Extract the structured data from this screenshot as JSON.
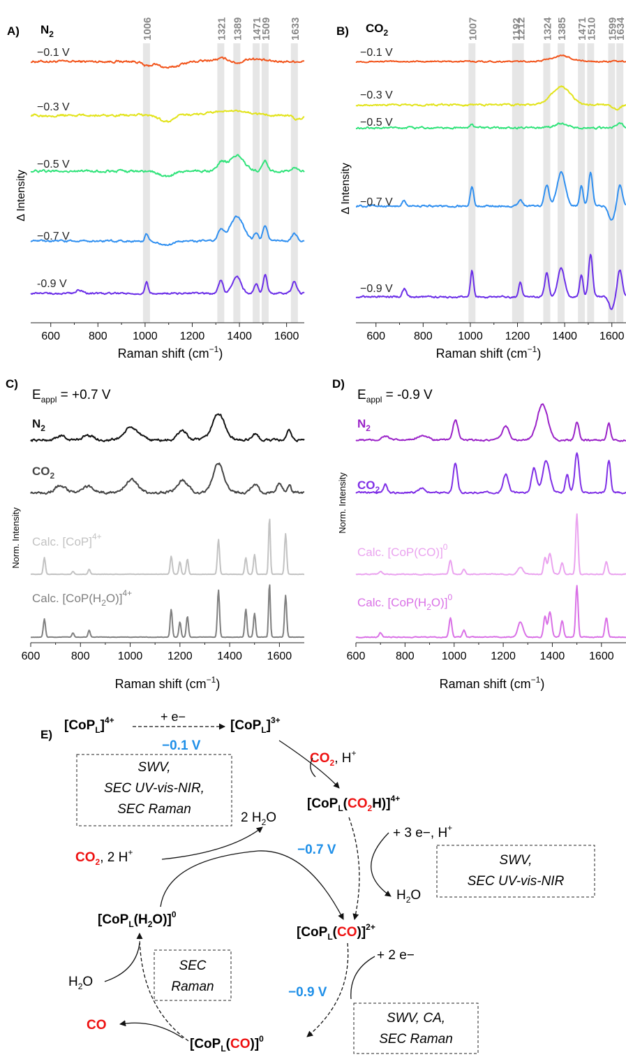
{
  "panels": {
    "A": {
      "letter": "A)",
      "gas": "N",
      "gas_sub": "2",
      "ylabel": "Δ Intensity",
      "xlabel_main": "Raman shift (cm",
      "xlabel_sup": "−1",
      "xlabel_end": ")",
      "ticks": [
        "600",
        "800",
        "1000",
        "1200",
        "1400",
        "1600"
      ],
      "peaks": [
        "1006",
        "1321",
        "1389",
        "1471",
        "1509",
        "1633"
      ],
      "traces": [
        {
          "label": "−0.1 V",
          "color": "#f2541b"
        },
        {
          "label": "−0.3 V",
          "color": "#e2e31a"
        },
        {
          "label": "−0.5 V",
          "color": "#30e37a"
        },
        {
          "label": "−0.7 V",
          "color": "#2f8ff0"
        },
        {
          "label": "-0.9 V",
          "color": "#6b2ee8"
        }
      ]
    },
    "B": {
      "letter": "B)",
      "gas": "CO",
      "gas_sub": "2",
      "ylabel": "Δ Intensity",
      "xlabel_main": "Raman shift (cm",
      "xlabel_sup": "−1",
      "xlabel_end": ")",
      "ticks": [
        "600",
        "800",
        "1000",
        "1200",
        "1400",
        "1600"
      ],
      "peaks": [
        "1007",
        "1192",
        "1212",
        "1324",
        "1385",
        "1471",
        "1510",
        "1599",
        "1634"
      ],
      "traces": [
        {
          "label": "−0.1 V",
          "color": "#f2541b"
        },
        {
          "label": "−0.3 V",
          "color": "#e2e31a"
        },
        {
          "label": "−0.5 V",
          "color": "#30e37a"
        },
        {
          "label": "−0.7 V",
          "color": "#2f8ff0"
        },
        {
          "label": "−0.9 V",
          "color": "#6b2ee8"
        }
      ]
    },
    "C": {
      "letter": "C)",
      "eappl": "E",
      "eappl_sub": "appl",
      "eappl_val": " = +0.7 V",
      "ylabel": "Norm. Intensity",
      "xlabel_main": "Raman shift (cm",
      "xlabel_sup": "−1",
      "xlabel_end": ")",
      "ticks": [
        "600",
        "800",
        "1000",
        "1200",
        "1400",
        "1600"
      ],
      "traces": [
        {
          "label": "N",
          "sub": "2",
          "sup": "",
          "color": "#111111"
        },
        {
          "label": "CO",
          "sub": "2",
          "sup": "",
          "color": "#444444"
        },
        {
          "label": "Calc. [CoP]",
          "sub": "",
          "sup": "4+",
          "color": "#c2c2c2"
        },
        {
          "label": "Calc. [CoP(H",
          "sub": "2",
          "label2": "O)]",
          "sup": "4+",
          "color": "#7f7f7f"
        }
      ]
    },
    "D": {
      "letter": "D)",
      "eappl": "E",
      "eappl_sub": "appl",
      "eappl_val": " = -0.9 V",
      "ylabel": "Norm. Intensity",
      "xlabel_main": "Raman shift (cm",
      "xlabel_sup": "−1",
      "xlabel_end": ")",
      "ticks": [
        "600",
        "800",
        "1000",
        "1200",
        "1400",
        "1600"
      ],
      "traces": [
        {
          "label": "N",
          "sub": "2",
          "sup": "",
          "color": "#9a22c8"
        },
        {
          "label": "CO",
          "sub": "2",
          "sup": "",
          "color": "#7f2fe6"
        },
        {
          "label": "Calc. [CoP(CO)]",
          "sub": "",
          "sup": "0",
          "color": "#eaa3ef"
        },
        {
          "label": "Calc. [CoP(H",
          "sub": "2",
          "label2": "O)]",
          "sup": "0",
          "color": "#d970e6"
        }
      ]
    }
  },
  "scheme": {
    "letter": "E)",
    "species": {
      "cop4": {
        "a": "[CoP",
        "sub": "L",
        "b": "]",
        "sup": "4+"
      },
      "cop3": {
        "a": "[CoP",
        "sub": "L",
        "b": "]",
        "sup": "3+"
      },
      "co2h": {
        "a": "[CoP",
        "sub": "L",
        "b": "(",
        "red": "CO",
        "rsub": "2",
        "c": "H)]",
        "sup": "4+"
      },
      "co2plus": {
        "a": "[CoP",
        "sub": "L",
        "b": "(",
        "red": "CO",
        "c": ")]",
        "sup": "2+"
      },
      "co0": {
        "a": "[CoP",
        "sub": "L",
        "b": "(",
        "red": "CO",
        "c": ")]",
        "sup": "0"
      },
      "h2o0": {
        "a": "[CoP",
        "sub": "L",
        "b": "(H",
        "bsub": "2",
        "c": "O)]",
        "sup": "0"
      }
    },
    "reagents": {
      "e1": "+ e−",
      "co2_h": {
        "red": "CO",
        "rsub": "2",
        "rest": ", H",
        "sup": "+"
      },
      "three_e": {
        "text": "+ 3 e−, H",
        "sup": "+"
      },
      "h2o_out": {
        "a": "H",
        "sub": "2",
        "b": "O"
      },
      "two_h2o": {
        "a": "2 H",
        "sub": "2",
        "b": "O"
      },
      "co2_2h": {
        "red": "CO",
        "rsub": "2",
        "rest": ", 2 H",
        "sup": "+"
      },
      "two_e": "+ 2 e−",
      "h2o_in": {
        "a": "H",
        "sub": "2",
        "b": "O"
      },
      "co_out": "CO"
    },
    "potentials": {
      "p1": "−0.1 V",
      "p2": "−0.7 V",
      "p3": "−0.9 V"
    },
    "boxes": {
      "b1": [
        "SWV,",
        "SEC UV-vis-NIR,",
        "SEC Raman"
      ],
      "b2": [
        "SWV,",
        "SEC UV-vis-NIR"
      ],
      "b3": [
        "SEC",
        "Raman"
      ],
      "b4": [
        "SWV, CA,",
        "SEC Raman"
      ]
    }
  },
  "colors": {
    "red": "#ee1111",
    "blue": "#1e8fe8",
    "band": "#e6e6e6"
  }
}
